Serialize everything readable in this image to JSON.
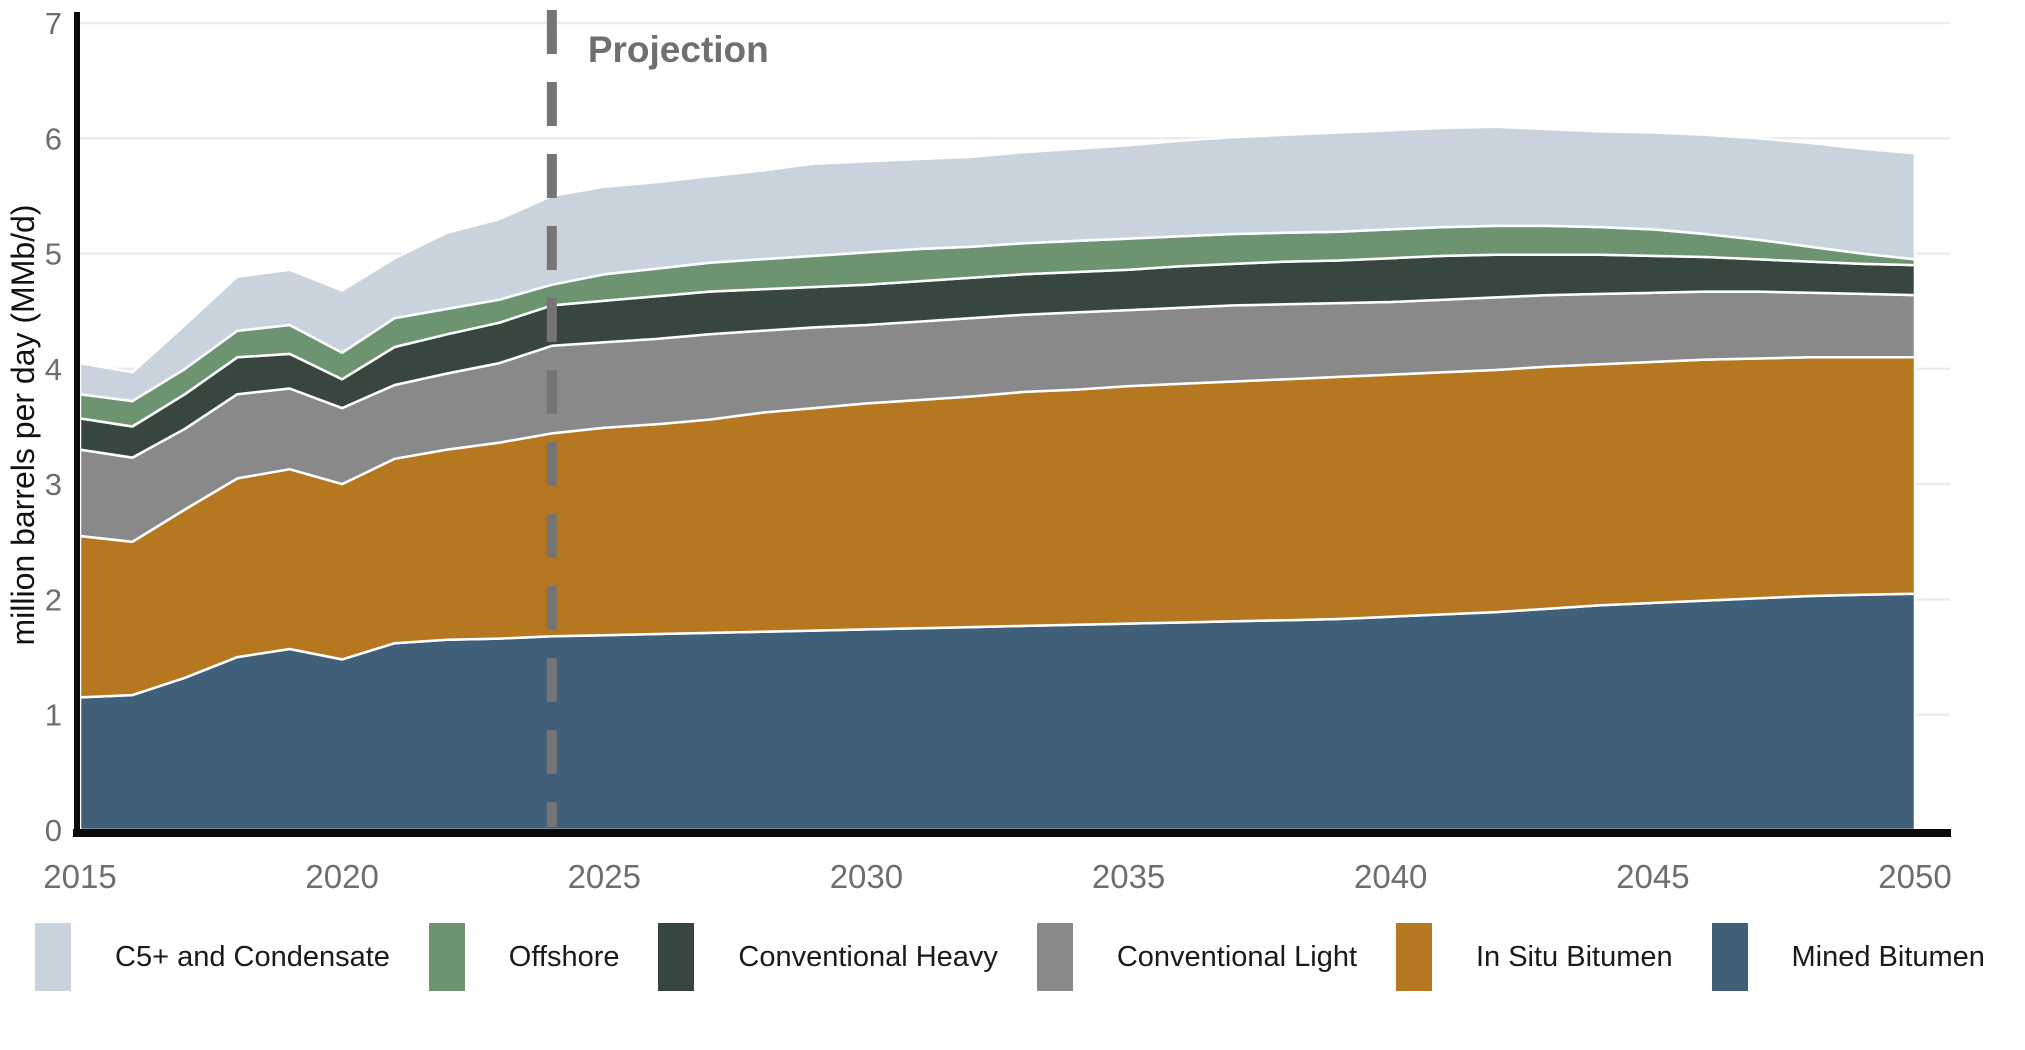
{
  "chart": {
    "ylabel": "million barrels per day (MMb/d)",
    "projection_label": "Projection",
    "yticks": [
      0,
      1,
      2,
      3,
      4,
      5,
      6,
      7
    ],
    "xticks": [
      2015,
      2020,
      2025,
      2030,
      2035,
      2040,
      2045,
      2050
    ],
    "axis_text_color": "#6e6e6e",
    "projection_text_color": "#6f6f6f",
    "projection_line_color": "#757575",
    "gridline_color": "#ebebeb",
    "axis_line_color": "#0a0a0a"
  },
  "chart_data": {
    "type": "area",
    "stacked": true,
    "title": "",
    "ylabel": "million barrels per day (MMb/d)",
    "xlabel": "",
    "ylim": [
      0,
      7
    ],
    "xlim": [
      2015,
      2050
    ],
    "grid": true,
    "legend_position": "bottom",
    "projection_start": 2024,
    "annotation": "Projection",
    "x": [
      2015,
      2016,
      2017,
      2018,
      2019,
      2020,
      2021,
      2022,
      2023,
      2024,
      2025,
      2026,
      2027,
      2028,
      2029,
      2030,
      2031,
      2032,
      2033,
      2034,
      2035,
      2036,
      2037,
      2038,
      2039,
      2040,
      2041,
      2042,
      2043,
      2044,
      2045,
      2046,
      2047,
      2048,
      2049,
      2050
    ],
    "series": [
      {
        "name": "Mined Bitumen",
        "color": "#40607a",
        "values": [
          1.15,
          1.17,
          1.32,
          1.5,
          1.57,
          1.48,
          1.62,
          1.65,
          1.66,
          1.68,
          1.69,
          1.7,
          1.71,
          1.72,
          1.73,
          1.74,
          1.75,
          1.76,
          1.77,
          1.78,
          1.79,
          1.8,
          1.81,
          1.82,
          1.83,
          1.85,
          1.87,
          1.89,
          1.92,
          1.95,
          1.97,
          1.99,
          2.01,
          2.03,
          2.04,
          2.05
        ]
      },
      {
        "name": "In Situ Bitumen",
        "color": "#b5771f",
        "values": [
          1.4,
          1.33,
          1.46,
          1.55,
          1.56,
          1.52,
          1.6,
          1.65,
          1.7,
          1.76,
          1.8,
          1.82,
          1.85,
          1.9,
          1.93,
          1.96,
          1.98,
          2.0,
          2.03,
          2.04,
          2.06,
          2.07,
          2.08,
          2.09,
          2.1,
          2.1,
          2.1,
          2.1,
          2.1,
          2.09,
          2.09,
          2.09,
          2.08,
          2.07,
          2.06,
          2.05
        ]
      },
      {
        "name": "Conventional Light",
        "color": "#898989",
        "values": [
          0.75,
          0.73,
          0.7,
          0.73,
          0.7,
          0.66,
          0.64,
          0.66,
          0.69,
          0.76,
          0.74,
          0.74,
          0.74,
          0.71,
          0.7,
          0.68,
          0.68,
          0.68,
          0.67,
          0.67,
          0.66,
          0.66,
          0.66,
          0.65,
          0.64,
          0.63,
          0.63,
          0.63,
          0.62,
          0.61,
          0.6,
          0.59,
          0.58,
          0.56,
          0.55,
          0.54
        ]
      },
      {
        "name": "Conventional Heavy",
        "color": "#37473f",
        "values": [
          0.27,
          0.27,
          0.3,
          0.32,
          0.3,
          0.25,
          0.33,
          0.34,
          0.35,
          0.35,
          0.36,
          0.37,
          0.37,
          0.36,
          0.35,
          0.35,
          0.35,
          0.35,
          0.35,
          0.35,
          0.35,
          0.36,
          0.36,
          0.37,
          0.37,
          0.38,
          0.38,
          0.37,
          0.35,
          0.34,
          0.32,
          0.3,
          0.28,
          0.27,
          0.26,
          0.26
        ]
      },
      {
        "name": "Offshore",
        "color": "#6d9470",
        "values": [
          0.21,
          0.22,
          0.22,
          0.23,
          0.25,
          0.23,
          0.25,
          0.22,
          0.2,
          0.18,
          0.23,
          0.24,
          0.25,
          0.26,
          0.27,
          0.28,
          0.28,
          0.27,
          0.27,
          0.27,
          0.27,
          0.26,
          0.26,
          0.25,
          0.25,
          0.25,
          0.25,
          0.25,
          0.25,
          0.24,
          0.23,
          0.2,
          0.17,
          0.13,
          0.09,
          0.05
        ]
      },
      {
        "name": "C5+ and Condensate",
        "color": "#c9d3de",
        "values": [
          0.27,
          0.25,
          0.38,
          0.47,
          0.48,
          0.54,
          0.52,
          0.66,
          0.7,
          0.77,
          0.76,
          0.75,
          0.75,
          0.77,
          0.8,
          0.79,
          0.78,
          0.78,
          0.79,
          0.8,
          0.81,
          0.83,
          0.84,
          0.85,
          0.86,
          0.86,
          0.86,
          0.86,
          0.84,
          0.83,
          0.84,
          0.86,
          0.88,
          0.9,
          0.91,
          0.92
        ]
      }
    ]
  },
  "legend": {
    "items": [
      {
        "label": "C5+ and Condensate",
        "color": "#c9d3de"
      },
      {
        "label": "Offshore",
        "color": "#6d9470"
      },
      {
        "label": "Conventional Heavy",
        "color": "#37473f"
      },
      {
        "label": "Conventional Light",
        "color": "#898989"
      },
      {
        "label": "In Situ Bitumen",
        "color": "#b5771f"
      },
      {
        "label": "Mined Bitumen",
        "color": "#40607a"
      }
    ]
  }
}
